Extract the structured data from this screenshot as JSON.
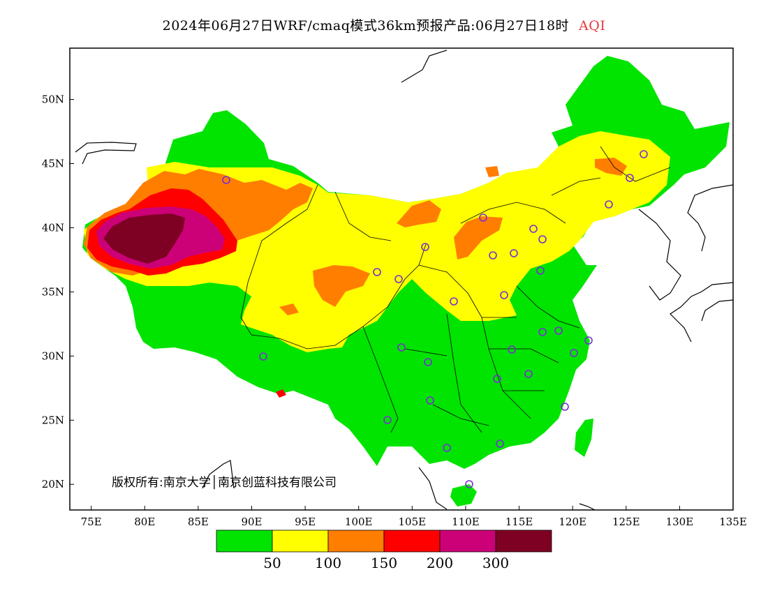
{
  "title": {
    "text": "2024年06月27日WRF/cmaq模式36km预报产品:06月27日18时",
    "variable": "AQI"
  },
  "axes": {
    "longitude_ticks": [
      "75E",
      "80E",
      "85E",
      "90E",
      "95E",
      "100E",
      "105E",
      "110E",
      "115E",
      "120E",
      "125E",
      "130E",
      "135E"
    ],
    "latitude_ticks": [
      "50N",
      "45N",
      "40N",
      "35N",
      "30N",
      "25N",
      "20N"
    ],
    "lon_range": [
      73,
      135
    ],
    "lat_range": [
      18,
      54
    ]
  },
  "copyright": "版权所有:南京大学│南京创蓝科技有限公司",
  "legend": {
    "colors": [
      "#00e400",
      "#ffff00",
      "#ff7e00",
      "#ff0000",
      "#cc0077",
      "#7e0023"
    ],
    "levels": [
      "50",
      "100",
      "150",
      "200",
      "300"
    ]
  },
  "colors": {
    "good": "#00e400",
    "moderate": "#ffff00",
    "sensitive": "#ff7e00",
    "unhealthy": "#ff0000",
    "very_unhealthy": "#cc0077",
    "hazardous": "#7e0023",
    "station_marker": "#7b2cd6",
    "title_accent": "#e8383b"
  }
}
